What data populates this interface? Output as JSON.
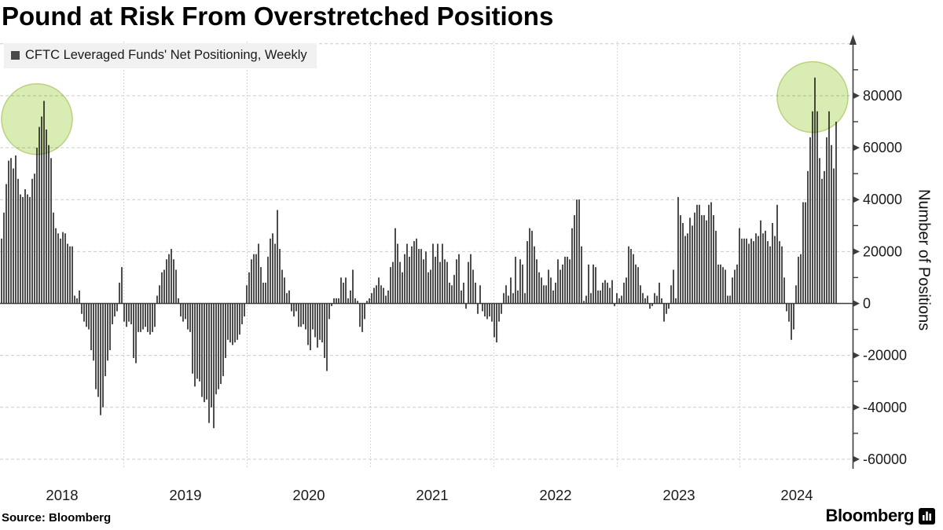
{
  "header": {
    "title": "Pound at Risk From Overstretched Positions"
  },
  "legend": {
    "label": "CFTC Leveraged Funds' Net Positioning, Weekly",
    "swatch_color": "#4a4a4a"
  },
  "footer": {
    "source": "Source: Bloomberg",
    "logo_text": "Bloomberg"
  },
  "y_axis": {
    "title": "Number of Positions",
    "ticks": [
      80000,
      60000,
      40000,
      20000,
      0,
      -20000,
      -40000,
      -60000
    ],
    "minor_ticks": [
      90000,
      70000,
      50000,
      30000,
      10000,
      -10000,
      -30000,
      -50000
    ]
  },
  "x_axis": {
    "year_labels": [
      "2018",
      "2019",
      "2020",
      "2021",
      "2022",
      "2023",
      "2024"
    ]
  },
  "colors": {
    "bar": "#4d4d4d",
    "grid": "#cccccc",
    "axis": "#3d3d3d",
    "text": "#1a1a1a",
    "highlight_fill": "#d9ecb4",
    "highlight_stroke": "#b9d27f",
    "legend_bg": "#f1f1f1"
  },
  "chart_data": {
    "type": "bar",
    "title": "Pound at Risk From Overstretched Positions",
    "ylabel": "Number of Positions",
    "ylim": [
      -70000,
      105000
    ],
    "grid": true,
    "frequency": "weekly",
    "x_start_year": 2018,
    "x_end": "late 2024",
    "legend_position": "top-left",
    "unit_scale": 1000,
    "series": [
      {
        "name": "CFTC Leveraged Funds' Net Positioning, Weekly",
        "values_k": [
          25,
          35,
          46,
          55,
          56,
          52,
          57,
          48,
          42,
          41,
          44,
          42,
          41,
          48,
          50,
          60,
          68,
          72,
          78,
          67,
          61,
          56,
          35,
          29,
          27,
          25,
          27.5,
          27,
          23,
          22,
          22,
          3,
          2,
          5,
          -4,
          -7,
          -9,
          -10,
          -18,
          -22,
          -33,
          -36,
          -43,
          -40,
          -28,
          -22,
          -18,
          -8,
          -5,
          -3,
          8,
          14,
          -7,
          -9,
          -7,
          -8,
          -21,
          -23,
          -11,
          -11,
          -10,
          -9,
          -11,
          -12,
          -11,
          -9,
          3,
          7,
          12,
          13,
          17,
          19,
          21,
          17,
          13,
          2,
          -5,
          -7,
          -6,
          -10,
          -11,
          -27,
          -32,
          -29,
          -30,
          -36,
          -38,
          -37,
          -46,
          -40,
          -48,
          -35,
          -33,
          -31,
          -28,
          -21,
          -14,
          -15,
          -16,
          -15,
          -14,
          -12,
          -8,
          -5,
          7,
          12,
          17,
          19,
          19,
          23,
          14,
          8,
          8,
          18,
          25,
          27,
          23,
          36,
          21,
          13,
          10,
          4,
          5,
          -3,
          -5,
          -3,
          -9,
          -9,
          -8,
          -10,
          -16,
          -18,
          -10,
          -13,
          -17,
          -14,
          -15,
          -21,
          -26,
          -6,
          -1,
          2,
          2,
          2,
          10,
          8,
          10,
          2,
          5,
          13,
          2,
          1,
          -9,
          -11,
          -6,
          1,
          2,
          4,
          6,
          7,
          10,
          7,
          6,
          3,
          5,
          14,
          16,
          29,
          23,
          16,
          12,
          19,
          23,
          18,
          22,
          24,
          25,
          21,
          21,
          17,
          20,
          12,
          13,
          23,
          18,
          23,
          16,
          23,
          17,
          16,
          8,
          7,
          11,
          17,
          19,
          5,
          8,
          -2,
          16,
          19,
          13,
          8,
          -4,
          7,
          -3,
          -5,
          -6,
          -5,
          -7,
          -13,
          -15,
          -7,
          -4,
          4,
          7,
          3,
          10,
          4,
          18,
          5,
          17,
          15,
          4,
          24,
          29,
          28,
          22,
          17,
          12,
          10,
          7,
          7,
          13,
          10,
          5,
          8,
          17,
          13,
          15,
          18,
          18,
          17,
          29,
          34,
          40,
          40,
          22,
          1,
          3,
          15,
          4,
          15,
          14,
          5,
          5,
          8,
          9,
          8,
          6,
          9,
          -1,
          4,
          2,
          3,
          8,
          10,
          22,
          21,
          19,
          15,
          14,
          7,
          4,
          2,
          3,
          -2,
          -1,
          4,
          3,
          8,
          2,
          -7,
          -4,
          -2,
          7,
          13,
          2,
          41,
          34,
          31,
          26,
          27,
          33,
          30,
          35,
          38,
          38,
          34,
          34,
          32,
          38,
          39,
          34,
          28,
          15,
          15,
          14,
          13,
          3,
          3,
          10,
          13,
          15,
          29,
          25,
          25,
          25,
          23,
          25,
          24,
          27,
          26,
          32,
          27,
          28,
          24,
          22,
          31,
          26,
          38,
          24,
          22,
          10,
          -3,
          -7,
          -14,
          -10,
          7,
          18,
          19,
          39,
          39,
          51,
          64,
          74,
          87,
          74,
          56,
          48,
          51,
          64,
          74,
          61,
          52,
          70
        ]
      }
    ],
    "annotations": [
      {
        "type": "highlight-circle",
        "week_index": 15,
        "value": 71000,
        "radius_px": 45,
        "note": "early-2018 long-positioning peak"
      },
      {
        "type": "highlight-circle",
        "week_index": 344,
        "value": 79500,
        "radius_px": 45,
        "note": "2024 long-positioning peak"
      }
    ]
  }
}
